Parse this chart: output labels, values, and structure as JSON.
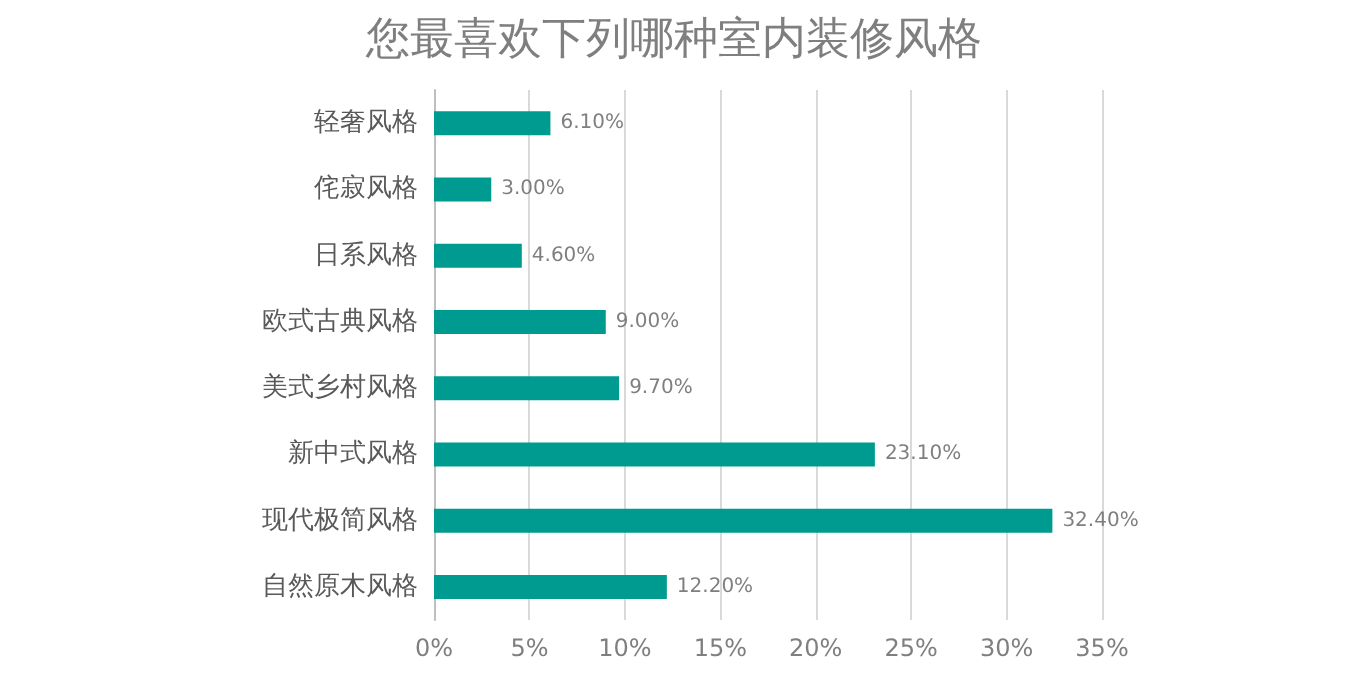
{
  "chart_data": {
    "type": "bar",
    "orientation": "horizontal",
    "title": "您最喜欢下列哪种室内装修风格",
    "categories": [
      "轻奢风格",
      "侘寂风格",
      "日系风格",
      "欧式古典风格",
      "美式乡村风格",
      "新中式风格",
      "现代极简风格",
      "自然原木风格"
    ],
    "values": [
      6.1,
      3.0,
      4.6,
      9.0,
      9.7,
      23.1,
      32.4,
      12.2
    ],
    "value_labels": [
      "6.10%",
      "3.00%",
      "4.60%",
      "9.00%",
      "9.70%",
      "23.10%",
      "32.40%",
      "12.20%"
    ],
    "color": "#009b90",
    "xlim": [
      0,
      35
    ],
    "xticks": [
      {
        "value": 0,
        "label": "0%"
      },
      {
        "value": 5,
        "label": "5%"
      },
      {
        "value": 10,
        "label": "10%"
      },
      {
        "value": 15,
        "label": "15%"
      },
      {
        "value": 20,
        "label": "20%"
      },
      {
        "value": 25,
        "label": "25%"
      },
      {
        "value": 30,
        "label": "30%"
      },
      {
        "value": 35,
        "label": "35%"
      }
    ],
    "grid": "x"
  }
}
